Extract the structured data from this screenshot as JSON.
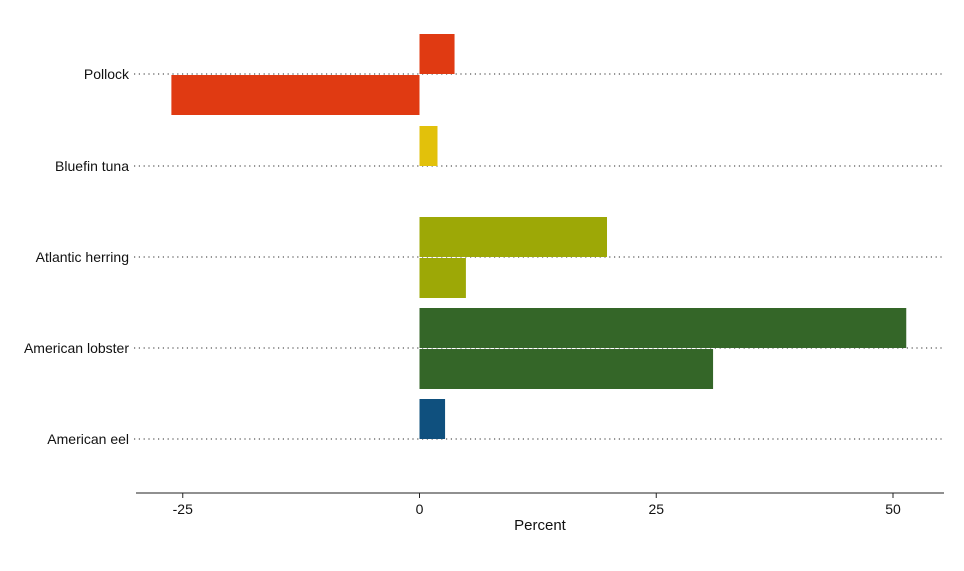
{
  "chart_data": {
    "type": "bar",
    "orientation": "horizontal",
    "grouped": true,
    "xlabel": "Percent",
    "ylabel": "",
    "xlim": [
      -30,
      55
    ],
    "xticks": [
      -25,
      0,
      25,
      50
    ],
    "xtick_labels": [
      "-25",
      "0",
      "25",
      "50"
    ],
    "grid": "dotted horizontal lines at each category",
    "legend": "none",
    "categories": [
      {
        "name": "Pollock",
        "color": "#E03A12",
        "values": [
          3.7,
          -26.2
        ]
      },
      {
        "name": "Bluefin tuna",
        "color": "#E2C10B",
        "values": [
          1.9
        ]
      },
      {
        "name": "Atlantic herring",
        "color": "#9DA806",
        "values": [
          19.8,
          4.9
        ]
      },
      {
        "name": "American lobster",
        "color": "#346628",
        "values": [
          51.4,
          31.0
        ]
      },
      {
        "name": "American eel",
        "color": "#0F507E",
        "values": [
          2.7
        ]
      }
    ]
  }
}
